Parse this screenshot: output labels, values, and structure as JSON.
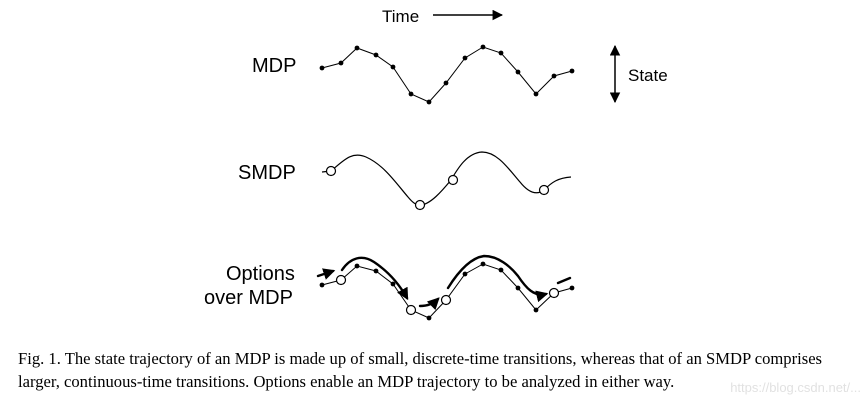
{
  "figure": {
    "time_label": "Time",
    "state_label": "State",
    "rows": {
      "mdp": "MDP",
      "smdp": "SMDP",
      "options_line1": "Options",
      "options_line2": "over MDP"
    }
  },
  "caption": {
    "text": "Fig. 1. The state trajectory of an MDP is made up of small, discrete-time transitions, whereas that of an SMDP comprises larger, continuous-time transitions. Options enable an MDP trajectory to be analyzed in either way."
  },
  "watermark": {
    "text": "https://blog.csdn.net/..."
  }
}
